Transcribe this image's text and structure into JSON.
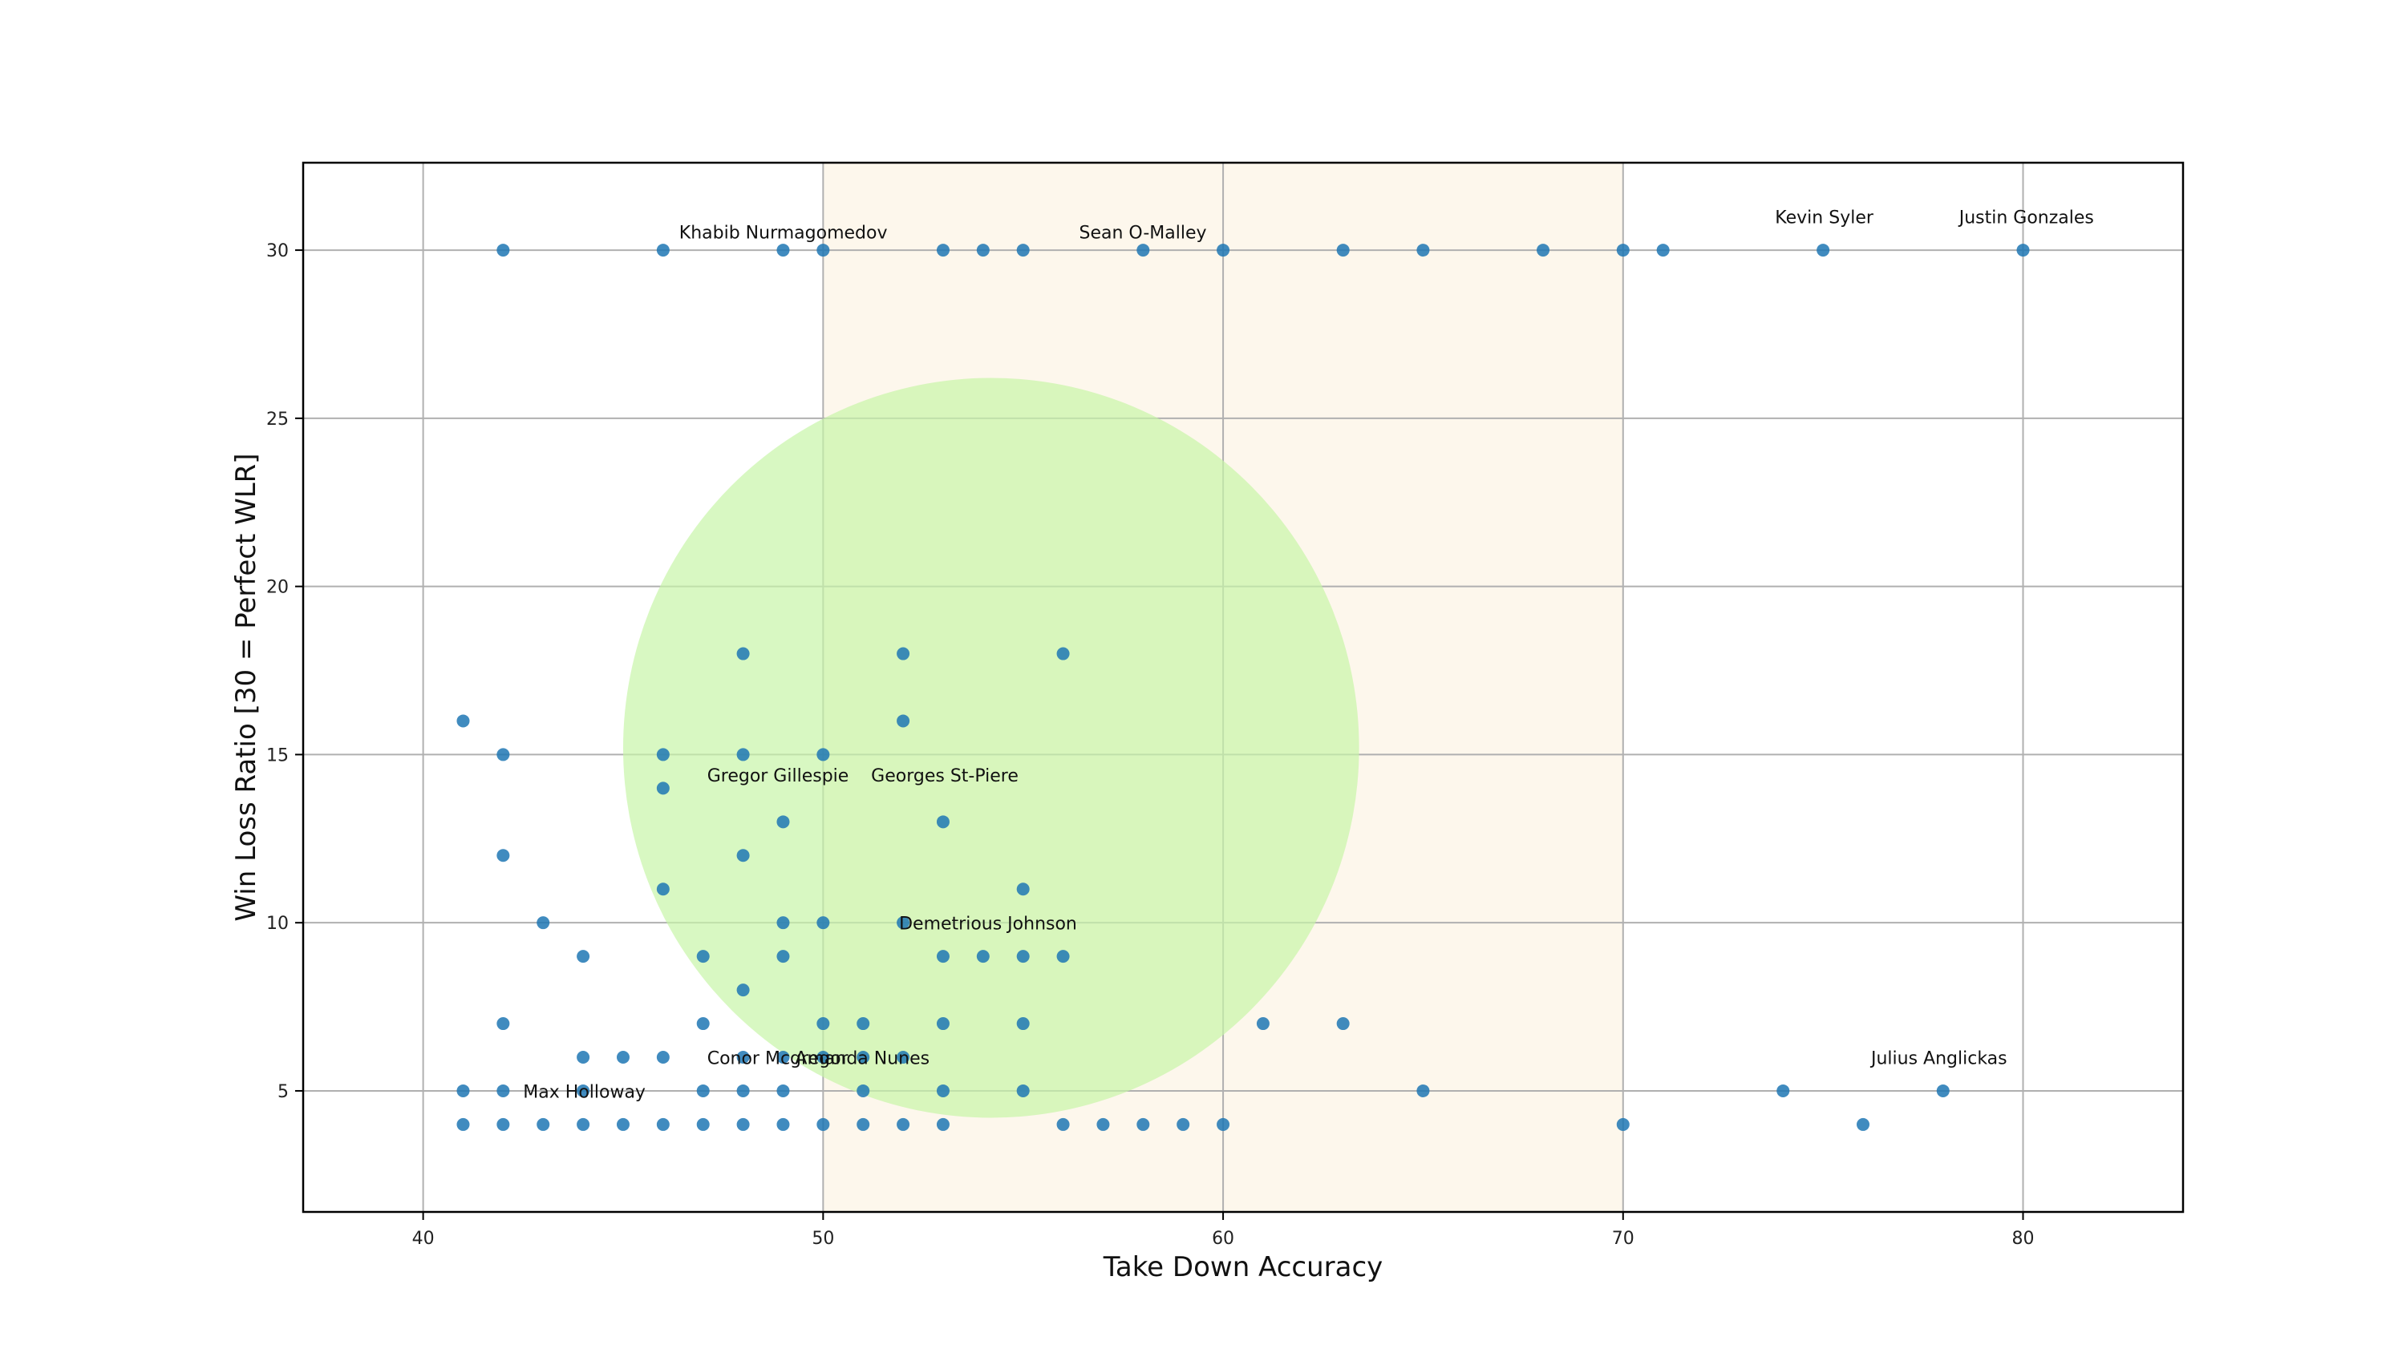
{
  "chart_data": {
    "type": "scatter",
    "title": "",
    "xlabel": "Take Down Accuracy",
    "ylabel": "Win Loss Ratio [30 = Perfect WLR]",
    "xlim": [
      37,
      84
    ],
    "ylim": [
      1.4,
      32.6
    ],
    "xticks": [
      40,
      50,
      60,
      70,
      80
    ],
    "yticks": [
      5,
      10,
      15,
      20,
      25,
      30
    ],
    "grid": true,
    "legend": "none",
    "colors": {
      "points": "#1f77b4",
      "band": "#fdf7ec",
      "circle": "#c8f5a8",
      "grid": "#b0b0b0",
      "frame": "#000000"
    },
    "shaded_band": {
      "x_from": 50,
      "x_to": 70
    },
    "highlight_circle": {
      "cx": 54.2,
      "cy": 15.2,
      "rx": 9.2,
      "ry": 11
    },
    "points": [
      [
        42,
        30
      ],
      [
        46,
        30
      ],
      [
        49,
        30
      ],
      [
        50,
        30
      ],
      [
        53,
        30
      ],
      [
        54,
        30
      ],
      [
        55,
        30
      ],
      [
        58,
        30
      ],
      [
        60,
        30
      ],
      [
        63,
        30
      ],
      [
        65,
        30
      ],
      [
        68,
        30
      ],
      [
        70,
        30
      ],
      [
        71,
        30
      ],
      [
        75,
        30
      ],
      [
        80,
        30
      ],
      [
        48,
        18
      ],
      [
        52,
        18
      ],
      [
        56,
        18
      ],
      [
        41,
        16
      ],
      [
        52,
        16
      ],
      [
        42,
        15
      ],
      [
        46,
        15
      ],
      [
        48,
        15
      ],
      [
        50,
        15
      ],
      [
        46,
        14
      ],
      [
        49,
        13
      ],
      [
        53,
        13
      ],
      [
        42,
        12
      ],
      [
        48,
        12
      ],
      [
        46,
        11
      ],
      [
        55,
        11
      ],
      [
        43,
        10
      ],
      [
        49,
        10
      ],
      [
        50,
        10
      ],
      [
        52,
        10
      ],
      [
        44,
        9
      ],
      [
        47,
        9
      ],
      [
        49,
        9
      ],
      [
        53,
        9
      ],
      [
        54,
        9
      ],
      [
        55,
        9
      ],
      [
        56,
        9
      ],
      [
        48,
        8
      ],
      [
        42,
        7
      ],
      [
        47,
        7
      ],
      [
        50,
        7
      ],
      [
        51,
        7
      ],
      [
        53,
        7
      ],
      [
        55,
        7
      ],
      [
        61,
        7
      ],
      [
        63,
        7
      ],
      [
        44,
        6
      ],
      [
        45,
        6
      ],
      [
        46,
        6
      ],
      [
        48,
        6
      ],
      [
        49,
        6
      ],
      [
        50,
        6
      ],
      [
        51,
        6
      ],
      [
        52,
        6
      ],
      [
        41,
        5
      ],
      [
        42,
        5
      ],
      [
        44,
        5
      ],
      [
        47,
        5
      ],
      [
        48,
        5
      ],
      [
        49,
        5
      ],
      [
        51,
        5
      ],
      [
        53,
        5
      ],
      [
        55,
        5
      ],
      [
        65,
        5
      ],
      [
        74,
        5
      ],
      [
        78,
        5
      ],
      [
        41,
        4
      ],
      [
        42,
        4
      ],
      [
        43,
        4
      ],
      [
        44,
        4
      ],
      [
        45,
        4
      ],
      [
        46,
        4
      ],
      [
        47,
        4
      ],
      [
        48,
        4
      ],
      [
        49,
        4
      ],
      [
        50,
        4
      ],
      [
        51,
        4
      ],
      [
        52,
        4
      ],
      [
        53,
        4
      ],
      [
        56,
        4
      ],
      [
        57,
        4
      ],
      [
        58,
        4
      ],
      [
        59,
        4
      ],
      [
        60,
        4
      ],
      [
        70,
        4
      ],
      [
        76,
        4
      ]
    ],
    "annotations": [
      {
        "text": "Khabib Nurmagomedov",
        "x": 46.4,
        "y": 30.35
      },
      {
        "text": "Sean O-Malley",
        "x": 56.4,
        "y": 30.35
      },
      {
        "text": "Kevin Syler",
        "x": 73.8,
        "y": 30.8
      },
      {
        "text": "Justin Gonzales",
        "x": 78.4,
        "y": 30.8
      },
      {
        "text": "Gregor Gillespie",
        "x": 47.1,
        "y": 14.2
      },
      {
        "text": "Georges St-Piere",
        "x": 51.2,
        "y": 14.2
      },
      {
        "text": "Demetrious Johnson",
        "x": 51.9,
        "y": 9.8
      },
      {
        "text": "Conor Mcgregor",
        "x": 47.1,
        "y": 5.8
      },
      {
        "text": "Amanda Nunes",
        "x": 49.3,
        "y": 5.8
      },
      {
        "text": "Julius Anglickas",
        "x": 76.2,
        "y": 5.8
      },
      {
        "text": "Max Holloway",
        "x": 42.5,
        "y": 4.8
      }
    ]
  }
}
